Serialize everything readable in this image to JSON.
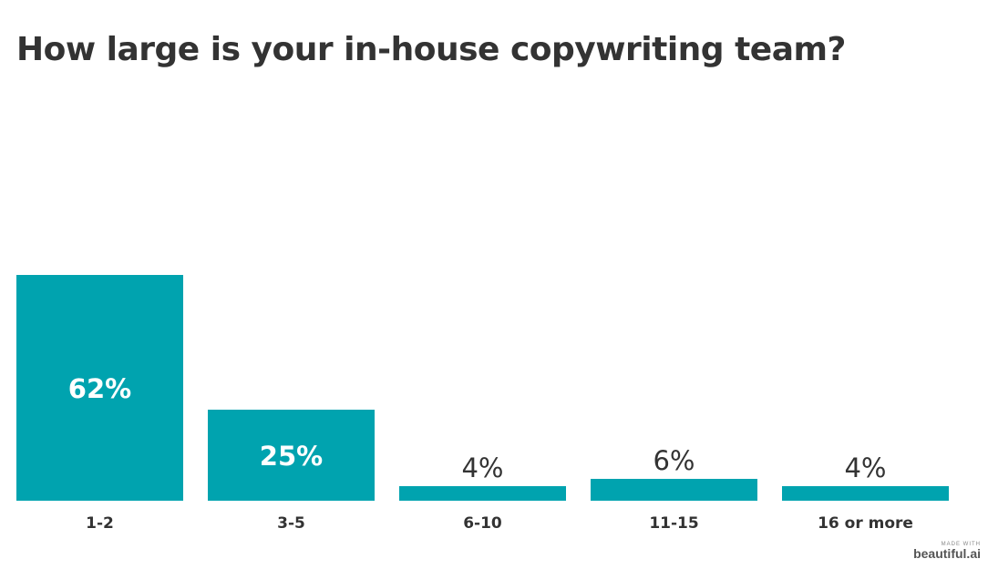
{
  "title": "How large is your in-house copywriting team?",
  "colors": {
    "bar": "#00a3af",
    "label_inside": "#ffffff",
    "label_outside": "#333333",
    "category_text": "#333333"
  },
  "chart_data": {
    "type": "bar",
    "title": "How large is your in-house copywriting team?",
    "xlabel": "",
    "ylabel": "",
    "categories": [
      "1-2",
      "3-5",
      "6-10",
      "11-15",
      "16 or more"
    ],
    "values": [
      62,
      25,
      4,
      6,
      4
    ],
    "data_labels": [
      "62%",
      "25%",
      "4%",
      "6%",
      "4%"
    ],
    "unit": "%",
    "ylim": [
      0,
      62
    ],
    "grid": false,
    "legend": "none"
  },
  "watermark": {
    "small": "MADE WITH",
    "brand": "beautiful.ai"
  }
}
